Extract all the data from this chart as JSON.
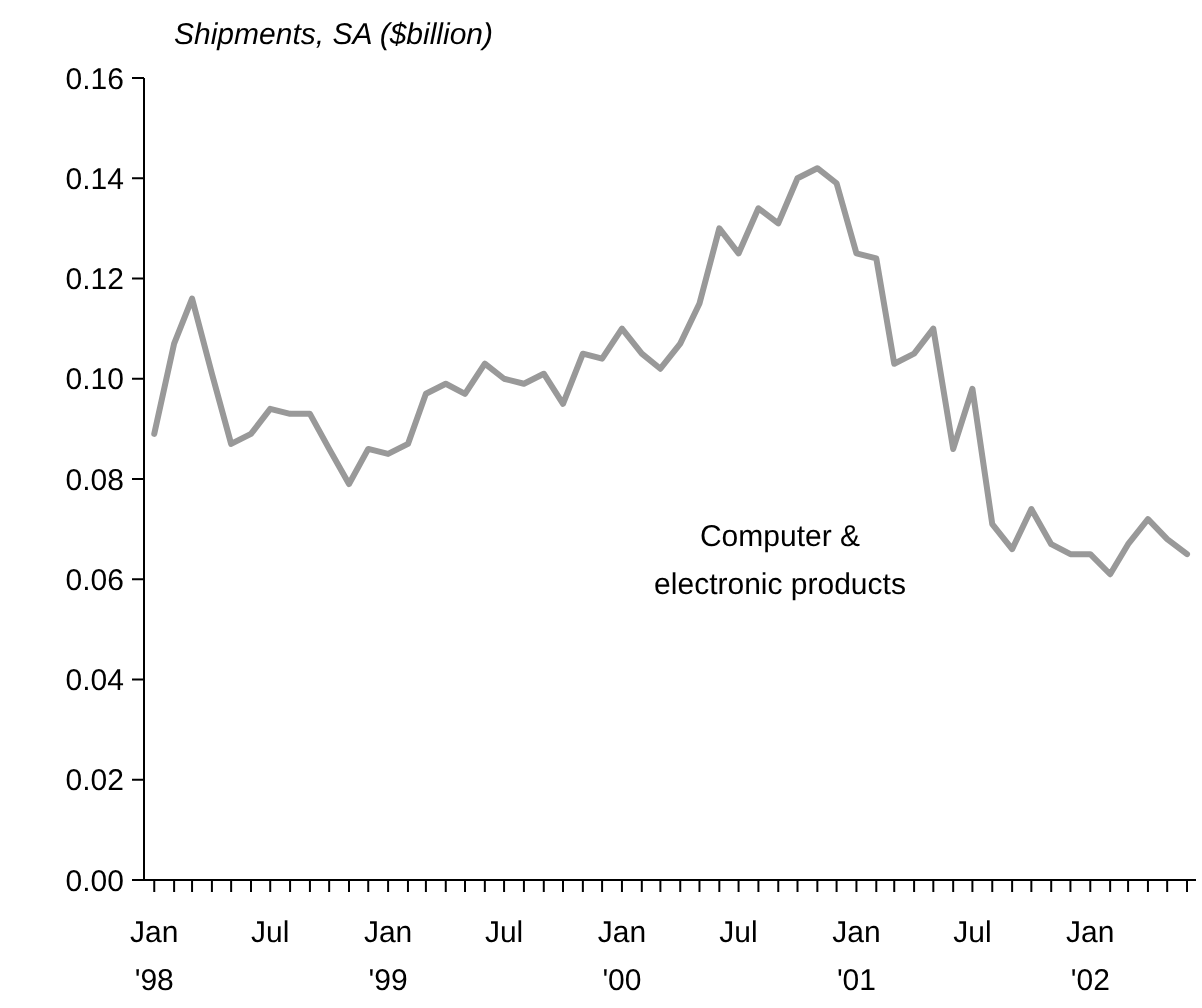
{
  "chart_data": {
    "type": "line",
    "ylabel": "Shipments, SA ($billion)",
    "x": [
      "1998-01",
      "1998-02",
      "1998-03",
      "1998-04",
      "1998-05",
      "1998-06",
      "1998-07",
      "1998-08",
      "1998-09",
      "1998-10",
      "1998-11",
      "1998-12",
      "1999-01",
      "1999-02",
      "1999-03",
      "1999-04",
      "1999-05",
      "1999-06",
      "1999-07",
      "1999-08",
      "1999-09",
      "1999-10",
      "1999-11",
      "1999-12",
      "2000-01",
      "2000-02",
      "2000-03",
      "2000-04",
      "2000-05",
      "2000-06",
      "2000-07",
      "2000-08",
      "2000-09",
      "2000-10",
      "2000-11",
      "2000-12",
      "2001-01",
      "2001-02",
      "2001-03",
      "2001-04",
      "2001-05",
      "2001-06",
      "2001-07",
      "2001-08",
      "2001-09",
      "2001-10",
      "2001-11",
      "2001-12",
      "2002-01",
      "2002-02",
      "2002-03",
      "2002-04",
      "2002-05",
      "2002-06"
    ],
    "series": [
      {
        "name": "Computer & electronic products",
        "color": "#999999",
        "values": [
          0.089,
          0.107,
          0.116,
          0.101,
          0.087,
          0.089,
          0.094,
          0.093,
          0.093,
          0.086,
          0.079,
          0.086,
          0.085,
          0.087,
          0.097,
          0.099,
          0.097,
          0.103,
          0.1,
          0.099,
          0.101,
          0.095,
          0.105,
          0.104,
          0.11,
          0.105,
          0.102,
          0.107,
          0.115,
          0.13,
          0.125,
          0.134,
          0.131,
          0.14,
          0.142,
          0.139,
          0.125,
          0.124,
          0.103,
          0.105,
          0.11,
          0.086,
          0.098,
          0.071,
          0.066,
          0.074,
          0.067,
          0.065,
          0.065,
          0.061,
          0.067,
          0.072,
          0.068,
          0.065
        ]
      }
    ],
    "xlim": [
      "1997-12-16",
      "2002-06-15"
    ],
    "xticks": [
      {
        "value": "1998-01",
        "label": "Jan '98"
      },
      {
        "value": "1998-02",
        "label": null
      },
      {
        "value": "1998-03",
        "label": null
      },
      {
        "value": "1998-04",
        "label": null
      },
      {
        "value": "1998-05",
        "label": null
      },
      {
        "value": "1998-06",
        "label": null
      },
      {
        "value": "1998-07",
        "label": "Jul"
      },
      {
        "value": "1998-08",
        "label": null
      },
      {
        "value": "1998-09",
        "label": null
      },
      {
        "value": "1998-10",
        "label": null
      },
      {
        "value": "1998-11",
        "label": null
      },
      {
        "value": "1998-12",
        "label": null
      },
      {
        "value": "1999-01",
        "label": "Jan '99"
      },
      {
        "value": "1999-02",
        "label": null
      },
      {
        "value": "1999-03",
        "label": null
      },
      {
        "value": "1999-04",
        "label": null
      },
      {
        "value": "1999-05",
        "label": null
      },
      {
        "value": "1999-06",
        "label": null
      },
      {
        "value": "1999-07",
        "label": "Jul"
      },
      {
        "value": "1999-08",
        "label": null
      },
      {
        "value": "1999-09",
        "label": null
      },
      {
        "value": "1999-10",
        "label": null
      },
      {
        "value": "1999-11",
        "label": null
      },
      {
        "value": "1999-12",
        "label": null
      },
      {
        "value": "2000-01",
        "label": "Jan '00"
      },
      {
        "value": "2000-02",
        "label": null
      },
      {
        "value": "2000-03",
        "label": null
      },
      {
        "value": "2000-04",
        "label": null
      },
      {
        "value": "2000-05",
        "label": null
      },
      {
        "value": "2000-06",
        "label": null
      },
      {
        "value": "2000-07",
        "label": "Jul"
      },
      {
        "value": "2000-08",
        "label": null
      },
      {
        "value": "2000-09",
        "label": null
      },
      {
        "value": "2000-10",
        "label": null
      },
      {
        "value": "2000-11",
        "label": null
      },
      {
        "value": "2000-12",
        "label": null
      },
      {
        "value": "2001-01",
        "label": "Jan '01"
      },
      {
        "value": "2001-02",
        "label": null
      },
      {
        "value": "2001-03",
        "label": null
      },
      {
        "value": "2001-04",
        "label": null
      },
      {
        "value": "2001-05",
        "label": null
      },
      {
        "value": "2001-06",
        "label": null
      },
      {
        "value": "2001-07",
        "label": "Jul"
      },
      {
        "value": "2001-08",
        "label": null
      },
      {
        "value": "2001-09",
        "label": null
      },
      {
        "value": "2001-10",
        "label": null
      },
      {
        "value": "2001-11",
        "label": null
      },
      {
        "value": "2001-12",
        "label": null
      },
      {
        "value": "2002-01",
        "label": "Jan '02"
      },
      {
        "value": "2002-02",
        "label": null
      },
      {
        "value": "2002-03",
        "label": null
      },
      {
        "value": "2002-04",
        "label": null
      },
      {
        "value": "2002-05",
        "label": null
      },
      {
        "value": "2002-06",
        "label": null
      }
    ],
    "ylim": [
      0,
      0.16
    ],
    "yticks": [
      {
        "value": 0,
        "label": "0.00"
      },
      {
        "value": 0.02,
        "label": "0.02"
      },
      {
        "value": 0.04,
        "label": "0.04"
      },
      {
        "value": 0.06,
        "label": "0.06"
      },
      {
        "value": 0.08,
        "label": "0.08"
      },
      {
        "value": 0.1,
        "label": "0.10"
      },
      {
        "value": 0.12,
        "label": "0.12"
      },
      {
        "value": 0.14,
        "label": "0.14"
      },
      {
        "value": 0.16,
        "label": "0.16"
      }
    ]
  }
}
